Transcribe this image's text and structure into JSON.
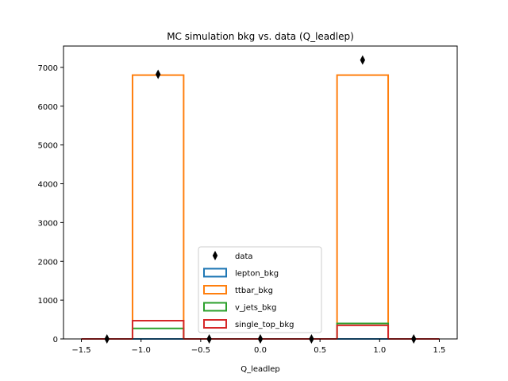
{
  "chart_data": {
    "type": "bar",
    "title": "MC simulation bkg vs. data (Q_leadlep)",
    "xlabel": "Q_leadlep",
    "ylabel": "",
    "xlim": [
      -1.65,
      1.65
    ],
    "ylim": [
      0,
      7550
    ],
    "x_ticks": [
      -1.5,
      -1.0,
      -0.5,
      0.0,
      0.5,
      1.0,
      1.5
    ],
    "x_tick_labels": [
      "−1.5",
      "−1.0",
      "−0.5",
      "0.0",
      "0.5",
      "1.0",
      "1.5"
    ],
    "y_ticks": [
      0,
      1000,
      2000,
      3000,
      4000,
      5000,
      6000,
      7000
    ],
    "y_tick_labels": [
      "0",
      "1000",
      "2000",
      "3000",
      "4000",
      "5000",
      "6000",
      "7000"
    ],
    "bin_edges": [
      -1.5,
      -1.0714,
      -0.6429,
      -0.2143,
      0.2143,
      0.6429,
      1.0714,
      1.5
    ],
    "series": [
      {
        "name": "lepton_bkg",
        "color": "#1f77b4",
        "style": "step",
        "values": [
          0,
          0,
          0,
          0,
          0,
          0,
          0
        ]
      },
      {
        "name": "ttbar_bkg",
        "color": "#ff7f0e",
        "style": "step",
        "values": [
          0,
          6800,
          0,
          0,
          0,
          6800,
          0
        ]
      },
      {
        "name": "v_jets_bkg",
        "color": "#2ca02c",
        "style": "step",
        "values": [
          0,
          270,
          0,
          0,
          0,
          400,
          0
        ]
      },
      {
        "name": "single_top_bkg",
        "color": "#d62728",
        "style": "step",
        "values": [
          0,
          470,
          0,
          0,
          0,
          350,
          0
        ]
      }
    ],
    "data_points": {
      "name": "data",
      "color": "#000000",
      "marker": "thin_diamond",
      "x": [
        -1.2857,
        -0.8571,
        -0.4286,
        0.0,
        0.4286,
        0.8571,
        1.2857
      ],
      "y": [
        0,
        6820,
        0,
        0,
        0,
        7190,
        0
      ]
    },
    "legend": {
      "placement": "lower-center",
      "entries": [
        "data",
        "lepton_bkg",
        "ttbar_bkg",
        "v_jets_bkg",
        "single_top_bkg"
      ]
    },
    "grid": false
  }
}
